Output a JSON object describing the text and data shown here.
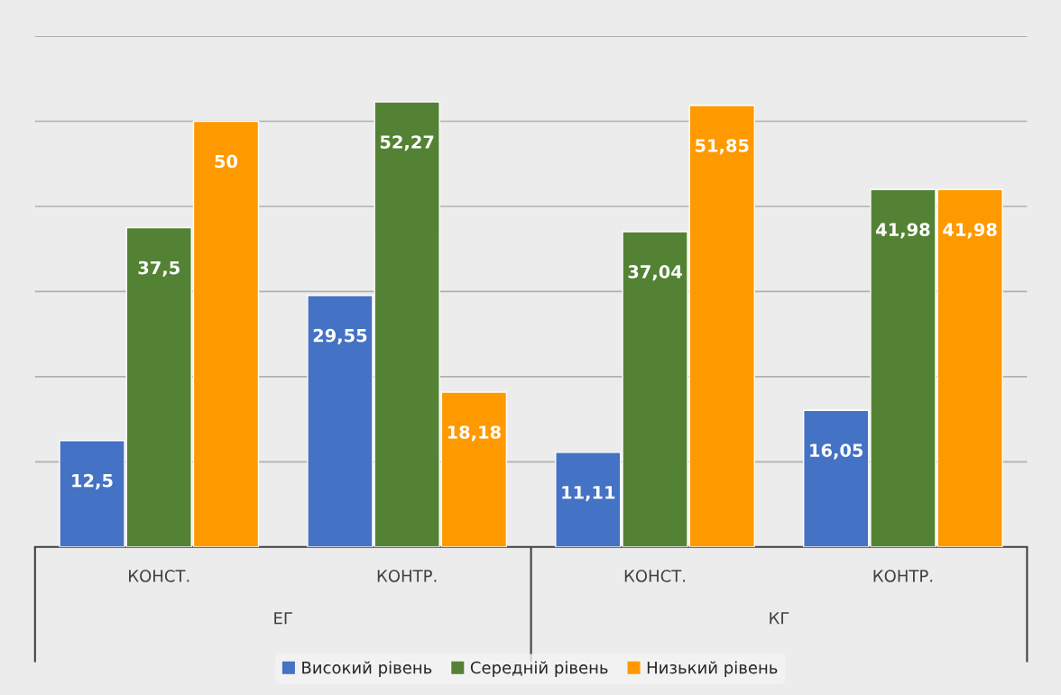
{
  "chart_data": {
    "type": "bar",
    "categories": [
      "КОНСТ.",
      "КОНТР.",
      "КОНСТ.",
      "КОНТР."
    ],
    "series": [
      {
        "name": "Високий рівень",
        "color": "#4472c4",
        "values": [
          12.5,
          29.55,
          11.11,
          16.05
        ],
        "value_labels": [
          "12,5",
          "29,55",
          "11,11",
          "16,05"
        ]
      },
      {
        "name": "Середній рівень",
        "color": "#548235",
        "values": [
          37.5,
          52.27,
          37.04,
          41.98
        ],
        "value_labels": [
          "37,5",
          "52,27",
          "37,04",
          "41,98"
        ]
      },
      {
        "name": "Низький рівень",
        "color": "#ff9900",
        "values": [
          50,
          18.18,
          51.85,
          41.98
        ],
        "value_labels": [
          "50",
          "18,18",
          "51,85",
          "41,98"
        ]
      }
    ],
    "annotations": [
      "ЕГ",
      "КГ"
    ],
    "ylim": [
      0,
      60
    ],
    "yticks": [
      {
        "value": 0,
        "label": null
      },
      {
        "value": 10,
        "label": null
      },
      {
        "value": 20,
        "label": null
      },
      {
        "value": 30,
        "label": null
      },
      {
        "value": 40,
        "label": null
      },
      {
        "value": 50,
        "label": null
      },
      {
        "value": 60,
        "label": null
      }
    ],
    "tick_labels": "x",
    "grid": "y",
    "legend": "bottom"
  }
}
